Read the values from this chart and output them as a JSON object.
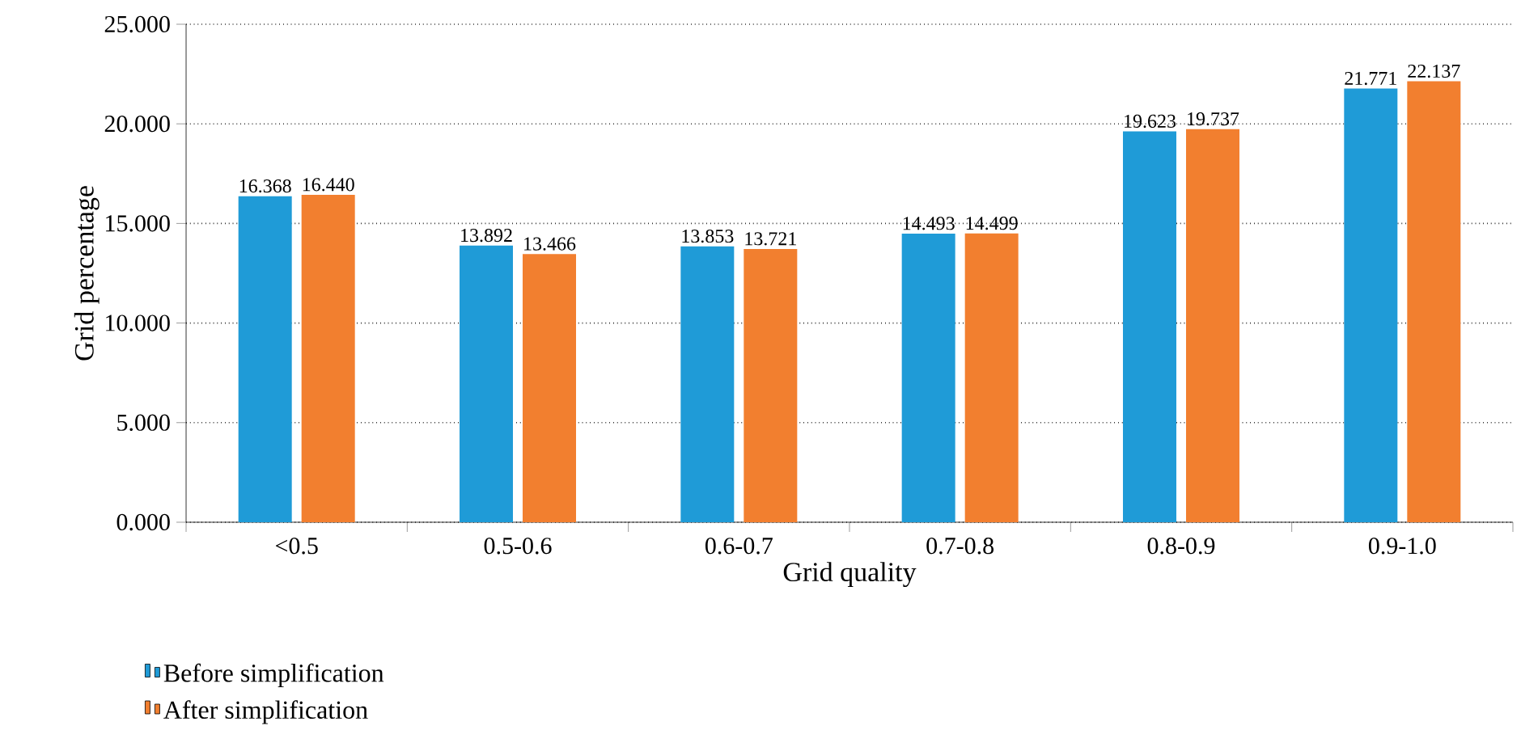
{
  "chart_data": {
    "type": "bar",
    "xlabel": "Grid quality",
    "ylabel": "Grid percentage",
    "categories": [
      "<0.5",
      "0.5-0.6",
      "0.6-0.7",
      "0.7-0.8",
      "0.8-0.9",
      "0.9-1.0"
    ],
    "series": [
      {
        "name": "Before simplification",
        "color": "#1f9bd7",
        "values": [
          16.368,
          13.892,
          13.853,
          14.493,
          19.623,
          21.771
        ],
        "value_labels": [
          "16.368",
          "13.892",
          "13.853",
          "14.493",
          "19.623",
          "21.771"
        ]
      },
      {
        "name": "After simplification",
        "color": "#f27f2f",
        "values": [
          16.44,
          13.466,
          13.721,
          14.499,
          19.737,
          22.137
        ],
        "value_labels": [
          "16.440",
          "13.466",
          "13.721",
          "14.499",
          "19.737",
          "22.137"
        ]
      }
    ],
    "ylim": [
      0,
      25
    ],
    "yticks": [
      {
        "value": 0,
        "label": "0.000"
      },
      {
        "value": 5,
        "label": "5.000"
      },
      {
        "value": 10,
        "label": "10.000"
      },
      {
        "value": 15,
        "label": "15.000"
      },
      {
        "value": 20,
        "label": "20.000"
      },
      {
        "value": 25,
        "label": "25.000"
      }
    ],
    "grid": "y",
    "legend": "bottom left"
  }
}
